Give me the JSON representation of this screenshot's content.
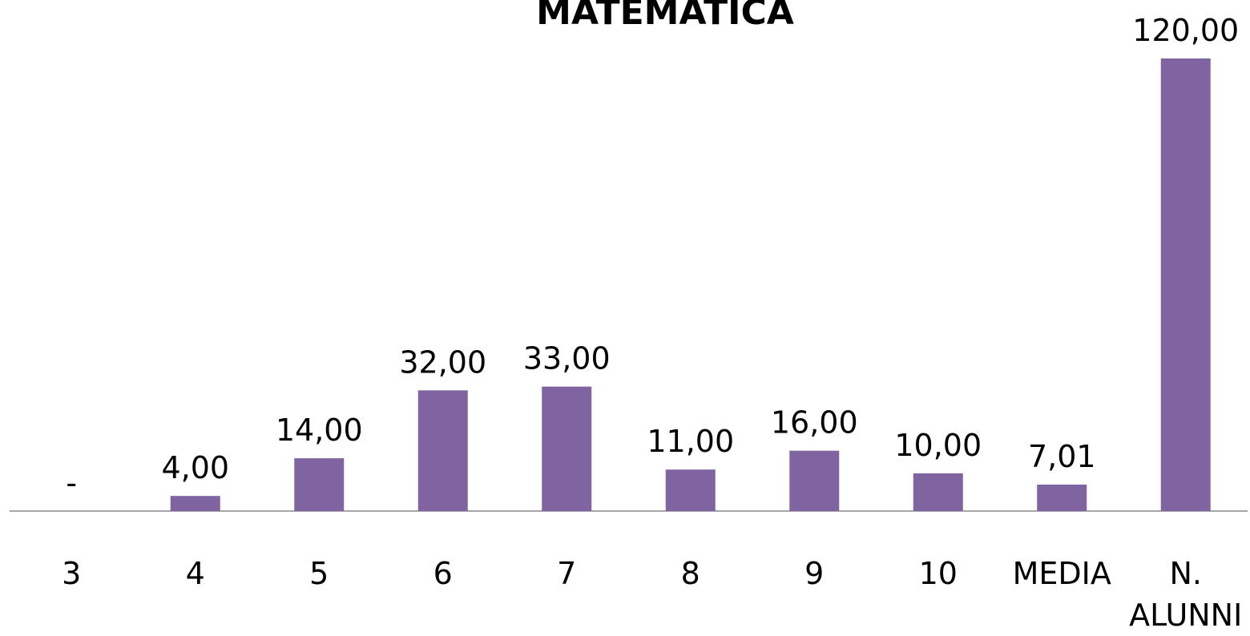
{
  "chart_data": {
    "type": "bar",
    "title": "MATEMATICA",
    "categories": [
      "3",
      "4",
      "5",
      "6",
      "7",
      "8",
      "9",
      "10",
      "MEDIA",
      "N. ALUNNI"
    ],
    "values": [
      0,
      4,
      14,
      32,
      33,
      11,
      16,
      10,
      7.01,
      120
    ],
    "value_labels": [
      "-",
      "4,00",
      "14,00",
      "32,00",
      "33,00",
      "11,00",
      "16,00",
      "10,00",
      "7,01",
      "120,00"
    ],
    "color": "#8064a2"
  }
}
